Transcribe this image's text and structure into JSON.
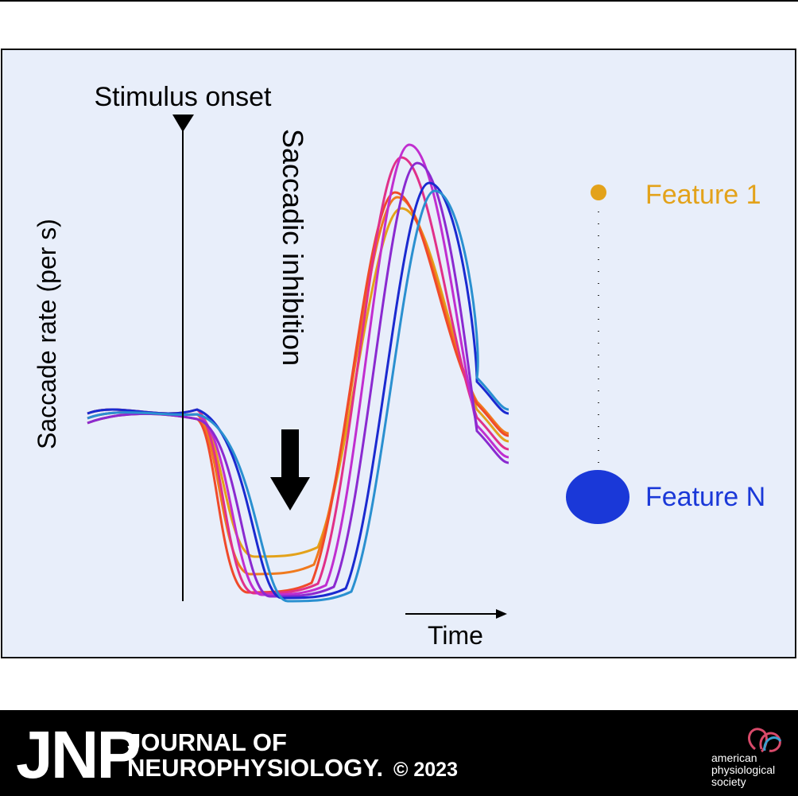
{
  "panel": {
    "stimulus_label": "Stimulus onset",
    "inhibition_label": "Saccadic inhibition",
    "y_axis_label": "Saccade rate (per s)",
    "x_axis_label": "Time",
    "legend": [
      "Feature 1",
      "Feature N"
    ]
  },
  "footer": {
    "journal_abbr": "JNP",
    "journal_name": [
      "JOURNAL OF",
      "NEUROPHYSIOLOGY."
    ],
    "copyright": "© 2023",
    "society": [
      "american",
      "physiological",
      "society"
    ]
  }
}
